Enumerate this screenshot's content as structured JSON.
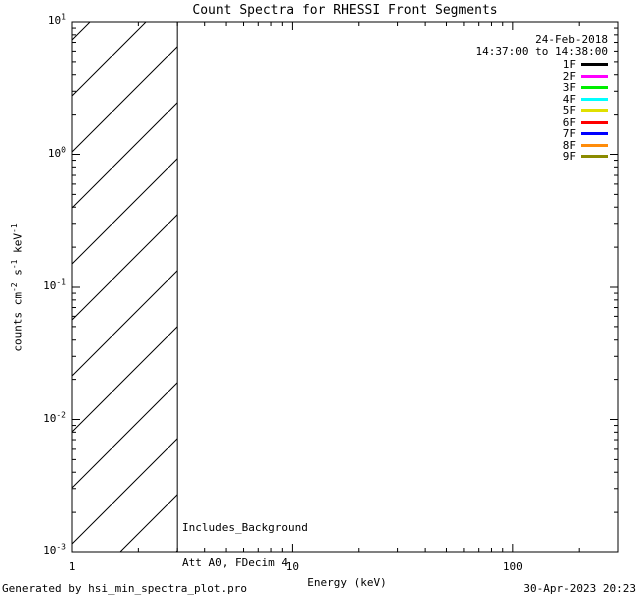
{
  "title": "Count Spectra for RHESSI Front Segments",
  "header": {
    "date": "24-Feb-2018",
    "time_range": "14:37:00 to 14:38:00"
  },
  "legend": {
    "position": "top-right",
    "entries": [
      {
        "label": "1F",
        "color": "#000000"
      },
      {
        "label": "2F",
        "color": "#ff00ff"
      },
      {
        "label": "3F",
        "color": "#00ee00"
      },
      {
        "label": "4F",
        "color": "#00ffff"
      },
      {
        "label": "5F",
        "color": "#e0e000"
      },
      {
        "label": "6F",
        "color": "#ff0000"
      },
      {
        "label": "7F",
        "color": "#0000ff"
      },
      {
        "label": "8F",
        "color": "#ff8c0a"
      },
      {
        "label": "9F",
        "color": "#8b8b00"
      }
    ]
  },
  "annotations": [
    "Includes_Background",
    "Att A0, FDecim 4"
  ],
  "footer": {
    "generated_by": "Generated by hsi_min_spectra_plot.pro",
    "timestamp": "30-Apr-2023 20:23"
  },
  "colors": {
    "foreground": "#000000",
    "background": "#ffffff"
  },
  "chart_data": {
    "type": "line",
    "title": "Count Spectra for RHESSI Front Segments",
    "xlabel": "Energy (keV)",
    "ylabel": "counts cm^-2 s^-1 keV^-1",
    "xscale": "log",
    "yscale": "log",
    "xlim": [
      1,
      300
    ],
    "ylim": [
      0.001,
      10
    ],
    "x_major_ticks": [
      1,
      10,
      100
    ],
    "x_tick_labels": [
      "1",
      "10",
      "100"
    ],
    "y_major_ticks": [
      0.001,
      0.01,
      0.1,
      1,
      10
    ],
    "y_tick_base": "10",
    "y_tick_exponents": [
      "-3",
      "-2",
      "-1",
      "0",
      "1"
    ],
    "grid": false,
    "legend_position": "top-right",
    "series": [
      {
        "name": "1F",
        "color": "#000000",
        "values": []
      },
      {
        "name": "2F",
        "color": "#ff00ff",
        "values": []
      },
      {
        "name": "3F",
        "color": "#00ee00",
        "values": []
      },
      {
        "name": "4F",
        "color": "#00ffff",
        "values": []
      },
      {
        "name": "5F",
        "color": "#e0e000",
        "values": []
      },
      {
        "name": "6F",
        "color": "#ff0000",
        "values": []
      },
      {
        "name": "7F",
        "color": "#0000ff",
        "values": []
      },
      {
        "name": "8F",
        "color": "#ff8c0a",
        "values": []
      },
      {
        "name": "9F",
        "color": "#8b8b00",
        "values": []
      }
    ],
    "series_note": "No spectra curves are drawn in the plot area; only axes, legend and hatched low-energy region are visible.",
    "hatched_region": {
      "x_from": 1,
      "x_to": 3,
      "y_from": 0.001,
      "y_to": 10,
      "style": "diagonal-hatch"
    }
  }
}
